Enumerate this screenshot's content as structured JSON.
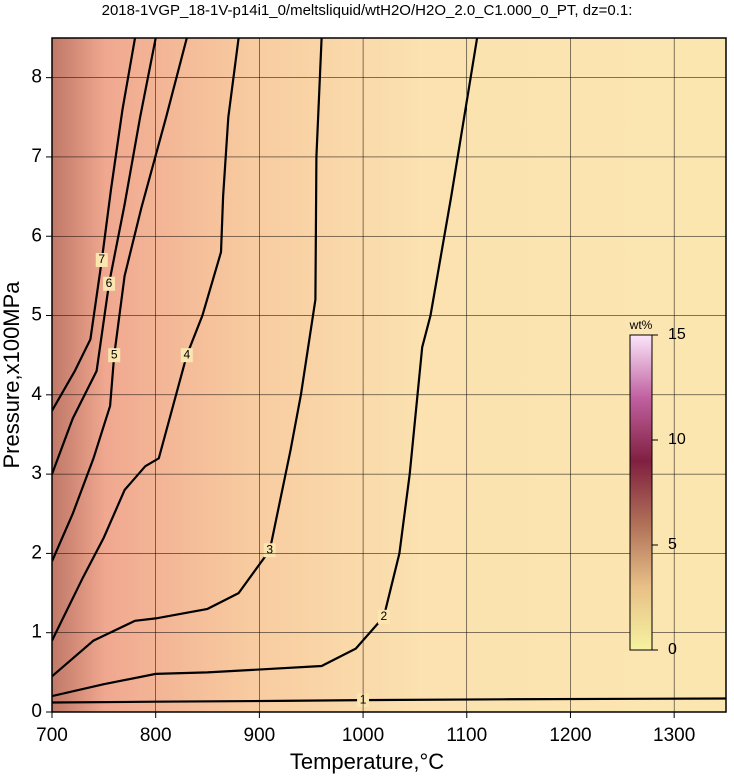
{
  "chart_data": {
    "type": "contour",
    "title": "2018-1VGP_18-1V-p14i1_0/meltsliquid/wtH2O/H2O_2.0_C1.000_0_PT, dz=0.1:",
    "x_label": "Temperature,°C",
    "y_label": "Pressure,x100MPa",
    "xlim": [
      700,
      1350
    ],
    "ylim": [
      0,
      8.5
    ],
    "xticks": [
      700,
      800,
      900,
      1000,
      1100,
      1200,
      1300
    ],
    "yticks": [
      0,
      1,
      2,
      3,
      4,
      5,
      6,
      7,
      8
    ],
    "grid": true,
    "line_color": "#000000",
    "contours": [
      {
        "level": 1,
        "x": [
          700,
          800,
          919,
          1000,
          1135,
          1350
        ],
        "y": [
          0.12,
          0.13,
          0.14,
          0.15,
          0.16,
          0.17
        ]
      },
      {
        "level": 2,
        "x": [
          700,
          750,
          800,
          850,
          960,
          993,
          1020,
          1035,
          1045,
          1057,
          1065,
          1085,
          1110
        ],
        "y": [
          0.2,
          0.35,
          0.48,
          0.5,
          0.58,
          0.8,
          1.2,
          2.0,
          3.0,
          4.6,
          5.0,
          6.5,
          8.5
        ]
      },
      {
        "level": 3,
        "x": [
          700,
          740,
          780,
          800,
          850,
          880,
          910,
          930,
          940,
          954,
          955,
          960
        ],
        "y": [
          0.45,
          0.9,
          1.15,
          1.18,
          1.3,
          1.5,
          2.04,
          3.3,
          4.0,
          5.2,
          7.0,
          8.5
        ]
      },
      {
        "level": 4,
        "x": [
          700,
          730,
          750,
          770,
          790,
          803,
          830,
          845,
          863,
          865,
          870,
          880
        ],
        "y": [
          0.9,
          1.7,
          2.2,
          2.8,
          3.1,
          3.2,
          4.5,
          5.0,
          5.8,
          6.5,
          7.5,
          8.5
        ]
      },
      {
        "level": 5,
        "x": [
          700,
          720,
          740,
          756,
          760,
          770,
          786,
          810,
          830
        ],
        "y": [
          1.9,
          2.5,
          3.2,
          3.86,
          4.5,
          5.5,
          6.35,
          7.5,
          8.5
        ]
      },
      {
        "level": 6,
        "x": [
          700,
          720,
          743,
          755,
          770,
          785,
          800
        ],
        "y": [
          3.0,
          3.7,
          4.3,
          5.4,
          6.4,
          7.5,
          8.5
        ]
      },
      {
        "level": 7,
        "x": [
          700,
          722,
          737,
          748,
          757,
          768,
          780
        ],
        "y": [
          3.8,
          4.3,
          4.7,
          5.7,
          6.6,
          7.6,
          8.5
        ]
      }
    ],
    "colorbar": {
      "label": "wt%",
      "lim": [
        0,
        15
      ],
      "ticks": [
        0,
        5,
        10,
        15
      ],
      "colors": [
        "#f6f2a0",
        "#e8c088",
        "#b07058",
        "#802040",
        "#c060a0",
        "#fbe6fb"
      ]
    }
  }
}
